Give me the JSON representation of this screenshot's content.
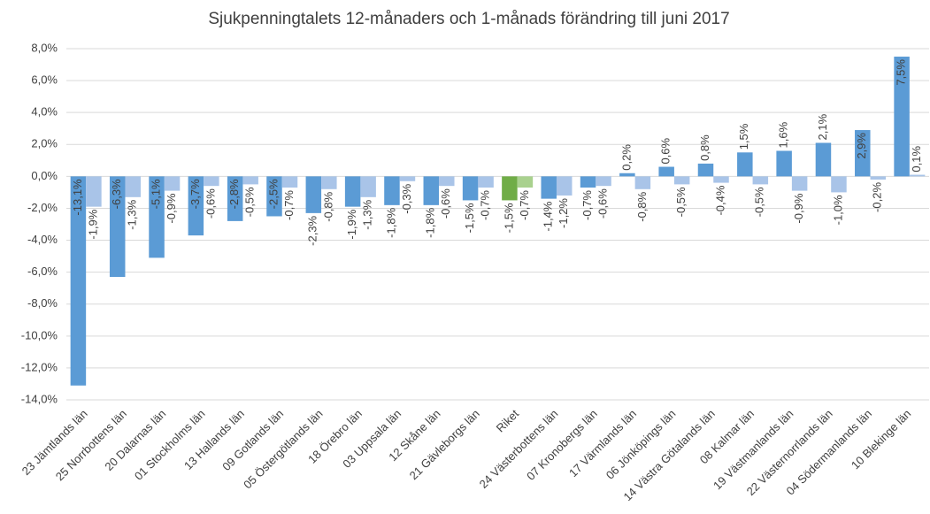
{
  "chart_data": {
    "type": "bar",
    "title": "Sjukpenningtalets 12-månaders och 1-månads förändring till juni 2017",
    "categories": [
      "23 Jämtlands län",
      "25 Norrbottens län",
      "20 Dalarnas län",
      "01 Stockholms län",
      "13 Hallands län",
      "09 Gotlands län",
      "05 Östergötlands län",
      "18 Örebro län",
      "03 Uppsala län",
      "12 Skåne län",
      "21 Gävleborgs län",
      "Riket",
      "24 Västerbottens län",
      "07 Kronobergs län",
      "17 Värmlands län",
      "06 Jönköpings län",
      "14 Västra Götalands län",
      "08 Kalmar län",
      "19 Västmanlands län",
      "22 Västernorrlands län",
      "04 Södermanlands län",
      "10 Blekinge län"
    ],
    "series": [
      {
        "colors": [
          "#5b9bd5",
          "#5b9bd5",
          "#5b9bd5",
          "#5b9bd5",
          "#5b9bd5",
          "#5b9bd5",
          "#5b9bd5",
          "#5b9bd5",
          "#5b9bd5",
          "#5b9bd5",
          "#5b9bd5",
          "#70ad47",
          "#5b9bd5",
          "#5b9bd5",
          "#5b9bd5",
          "#5b9bd5",
          "#5b9bd5",
          "#5b9bd5",
          "#5b9bd5",
          "#5b9bd5",
          "#5b9bd5",
          "#5b9bd5"
        ],
        "values": [
          -13.1,
          -6.3,
          -5.1,
          -3.7,
          -2.8,
          -2.5,
          -2.3,
          -1.9,
          -1.8,
          -1.8,
          -1.5,
          -1.5,
          -1.4,
          -0.7,
          0.2,
          0.6,
          0.8,
          1.5,
          1.6,
          2.1,
          2.9,
          7.5
        ],
        "value_labels": [
          "-13,1%",
          "-6,3%",
          "-5,1%",
          "-3,7%",
          "-2,8%",
          "-2,5%",
          "-2,3%",
          "-1,9%",
          "-1,8%",
          "-1,8%",
          "-1,5%",
          "-1,5%",
          "-1,4%",
          "-0,7%",
          "0,2%",
          "0,6%",
          "0,8%",
          "1,5%",
          "1,6%",
          "2,1%",
          "2,9%",
          "7,5%"
        ]
      },
      {
        "colors": [
          "#a9c4e8",
          "#a9c4e8",
          "#a9c4e8",
          "#a9c4e8",
          "#a9c4e8",
          "#a9c4e8",
          "#a9c4e8",
          "#a9c4e8",
          "#a9c4e8",
          "#a9c4e8",
          "#a9c4e8",
          "#a9d18e",
          "#a9c4e8",
          "#a9c4e8",
          "#a9c4e8",
          "#a9c4e8",
          "#a9c4e8",
          "#a9c4e8",
          "#a9c4e8",
          "#a9c4e8",
          "#a9c4e8",
          "#a9c4e8"
        ],
        "values": [
          -1.9,
          -1.3,
          -0.9,
          -0.6,
          -0.5,
          -0.7,
          -0.8,
          -1.3,
          -0.3,
          -0.6,
          -0.7,
          -0.7,
          -1.2,
          -0.6,
          -0.8,
          -0.5,
          -0.4,
          -0.5,
          -0.9,
          -1.0,
          -0.2,
          0.1
        ],
        "value_labels": [
          "-1,9%",
          "-1,3%",
          "-0,9%",
          "-0,6%",
          "-0,5%",
          "-0,7%",
          "-0,8%",
          "-1,3%",
          "-0,3%",
          "-0,6%",
          "-0,7%",
          "-0,7%",
          "-1,2%",
          "-0,6%",
          "-0,8%",
          "-0,5%",
          "-0,4%",
          "-0,5%",
          "-0,9%",
          "-1,0%",
          "-0,2%",
          "0,1%"
        ]
      }
    ],
    "ylim": [
      -14,
      8
    ],
    "yticks": [
      {
        "value": 8,
        "label": "8,0%"
      },
      {
        "value": 6,
        "label": "6,0%"
      },
      {
        "value": 4,
        "label": "4,0%"
      },
      {
        "value": 2,
        "label": "2,0%"
      },
      {
        "value": 0,
        "label": "0,0%"
      },
      {
        "value": -2,
        "label": "-2,0%"
      },
      {
        "value": -4,
        "label": "-4,0%"
      },
      {
        "value": -6,
        "label": "-6,0%"
      },
      {
        "value": -8,
        "label": "-8,0%"
      },
      {
        "value": -10,
        "label": "-10,0%"
      },
      {
        "value": -12,
        "label": "-12,0%"
      },
      {
        "value": -14,
        "label": "-14,0%"
      }
    ],
    "grid": true
  }
}
